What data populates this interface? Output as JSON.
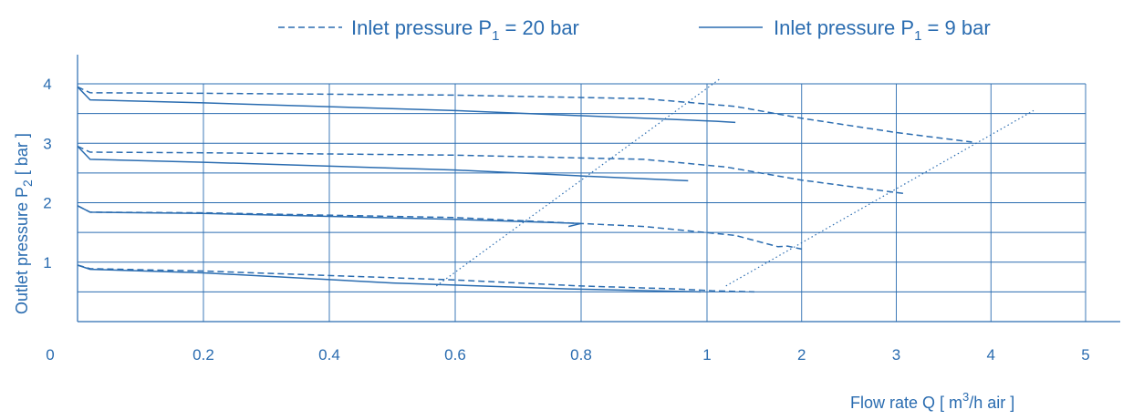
{
  "colors": {
    "primary": "#2a6cb0",
    "dotted": "#2a6cb0",
    "background": "#ffffff"
  },
  "legend": [
    {
      "style": "dashed",
      "label": "Inlet pressure P",
      "sub": "1",
      "suffix": " = 20 bar"
    },
    {
      "style": "solid",
      "label": "Inlet pressure P",
      "sub": "1",
      "suffix": " = 9 bar"
    }
  ],
  "chart_data": {
    "type": "line",
    "xlabel": {
      "text": "Flow rate Q [ m",
      "sup": "3",
      "rest": "/h air ]"
    },
    "ylabel": {
      "text": "Outlet pressure P",
      "sub": "2",
      "rest": " [ bar ]"
    },
    "x_scales": [
      {
        "name": "left scale",
        "range": [
          0,
          1
        ],
        "ticks": [
          "0",
          "0.2",
          "0.4",
          "0.6",
          "0.8",
          "1"
        ]
      },
      {
        "name": "right scale",
        "range": [
          1,
          5
        ],
        "ticks": [
          "1",
          "2",
          "3",
          "4",
          "5"
        ]
      }
    ],
    "y_ticks": [
      "1",
      "2",
      "3",
      "4"
    ],
    "ylim": [
      0.6,
      4.2
    ],
    "grid": true,
    "series": [
      {
        "name": "Inlet pressure P1 = 20 bar",
        "style": "dashed",
        "curves": [
          [
            [
              0,
              3.95
            ],
            [
              0.02,
              3.85
            ],
            [
              0.2,
              3.84
            ],
            [
              0.6,
              3.81
            ],
            [
              0.9,
              3.75
            ],
            [
              1.3,
              3.62
            ],
            [
              2.0,
              3.42
            ],
            [
              3.0,
              3.18
            ],
            [
              3.8,
              3.02
            ]
          ],
          [
            [
              0,
              2.95
            ],
            [
              0.02,
              2.85
            ],
            [
              0.2,
              2.84
            ],
            [
              0.6,
              2.8
            ],
            [
              0.9,
              2.73
            ],
            [
              1.2,
              2.6
            ],
            [
              2.0,
              2.38
            ],
            [
              3.1,
              2.15
            ]
          ],
          [
            [
              0,
              1.95
            ],
            [
              0.02,
              1.84
            ],
            [
              0.2,
              1.83
            ],
            [
              0.6,
              1.75
            ],
            [
              0.9,
              1.6
            ],
            [
              1.3,
              1.45
            ],
            [
              1.75,
              1.26
            ],
            [
              1.85,
              1.27
            ],
            [
              2.0,
              1.22
            ]
          ],
          [
            [
              0,
              0.95
            ],
            [
              0.02,
              0.89
            ],
            [
              0.2,
              0.85
            ],
            [
              0.6,
              0.7
            ],
            [
              0.8,
              0.6
            ],
            [
              0.95,
              0.55
            ],
            [
              1.05,
              0.52
            ],
            [
              1.5,
              0.5
            ]
          ]
        ]
      },
      {
        "name": "Inlet pressure P1 = 9 bar",
        "style": "solid",
        "curves": [
          [
            [
              0,
              3.95
            ],
            [
              0.02,
              3.73
            ],
            [
              0.2,
              3.68
            ],
            [
              0.6,
              3.55
            ],
            [
              0.9,
              3.42
            ],
            [
              1.1,
              3.37
            ],
            [
              1.3,
              3.35
            ]
          ],
          [
            [
              0,
              2.95
            ],
            [
              0.02,
              2.73
            ],
            [
              0.2,
              2.68
            ],
            [
              0.6,
              2.55
            ],
            [
              0.8,
              2.45
            ],
            [
              0.97,
              2.37
            ]
          ],
          [
            [
              0,
              1.95
            ],
            [
              0.02,
              1.84
            ],
            [
              0.2,
              1.82
            ],
            [
              0.6,
              1.72
            ],
            [
              0.8,
              1.65
            ],
            [
              0.78,
              1.6
            ]
          ],
          [
            [
              0,
              0.95
            ],
            [
              0.02,
              0.88
            ],
            [
              0.2,
              0.82
            ],
            [
              0.5,
              0.65
            ],
            [
              0.64,
              0.6
            ],
            [
              0.78,
              0.55
            ],
            [
              0.99,
              0.5
            ]
          ]
        ]
      }
    ],
    "limit_lines": [
      {
        "style": "dotted",
        "points": [
          [
            0.57,
            0.6
          ],
          [
            1.15,
            4.1
          ]
        ]
      },
      {
        "style": "dotted",
        "points": [
          [
            1.2,
            0.6
          ],
          [
            4.45,
            3.55
          ]
        ]
      }
    ]
  }
}
